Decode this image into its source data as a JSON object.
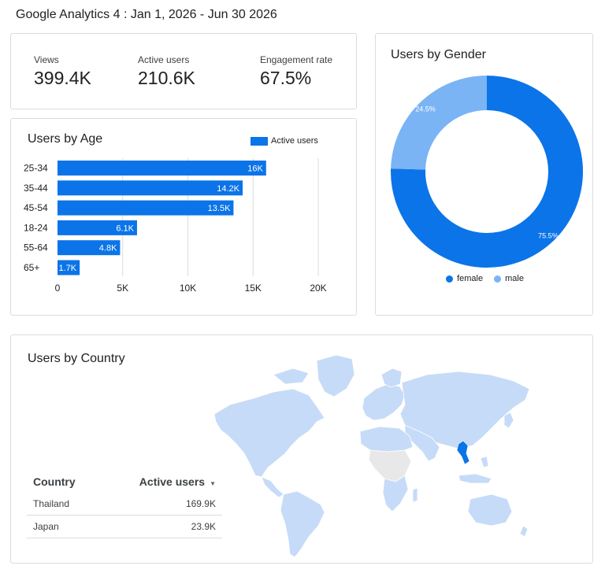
{
  "page": {
    "title": "Google Analytics 4 : Jan 1, 2026 - Jun 30 2026"
  },
  "kpis": [
    {
      "label": "Views",
      "value": "399.4K"
    },
    {
      "label": "Active users",
      "value": "210.6K"
    },
    {
      "label": "Engagement rate",
      "value": "67.5%"
    }
  ],
  "age_card": {
    "title": "Users by Age",
    "legend_label": "Active users"
  },
  "gender_card": {
    "title": "Users by Gender",
    "legend": [
      {
        "label": "female",
        "color": "#0b74e8"
      },
      {
        "label": "male",
        "color": "#7ab4f5"
      }
    ]
  },
  "country_card": {
    "title": "Users by Country",
    "table": {
      "headers": {
        "country": "Country",
        "active_users": "Active users",
        "sort_icon": "▼"
      },
      "rows": [
        {
          "country": "Thailand",
          "active_users": "169.9K"
        },
        {
          "country": "Japan",
          "active_users": "23.9K"
        }
      ]
    },
    "map_colors": {
      "land": "#c6dbf7",
      "highlight": "#0b74e8",
      "nodata": "#e8e8e8",
      "border": "#ffffff"
    }
  },
  "chart_data": [
    {
      "type": "bar",
      "orientation": "horizontal",
      "title": "Users by Age",
      "categories": [
        "25-34",
        "35-44",
        "45-54",
        "18-24",
        "55-64",
        "65+"
      ],
      "series": [
        {
          "name": "Active users",
          "values": [
            16000,
            14200,
            13500,
            6100,
            4800,
            1700
          ],
          "labels": [
            "16K",
            "14.2K",
            "13.5K",
            "6.1K",
            "4.8K",
            "1.7K"
          ]
        }
      ],
      "xlim": [
        0,
        20000
      ],
      "ticks": [
        0,
        5000,
        10000,
        15000,
        20000
      ],
      "tick_labels": [
        "0",
        "5K",
        "10K",
        "15K",
        "20K"
      ],
      "grid": true,
      "legend": "top-right",
      "color": "#0b74e8"
    },
    {
      "type": "pie",
      "title": "Users by Gender",
      "donut": true,
      "slices": [
        {
          "name": "female",
          "value": 75.5,
          "label": "75.5%",
          "color": "#0b74e8"
        },
        {
          "name": "male",
          "value": 24.5,
          "label": "24.5%",
          "color": "#7ab4f5"
        }
      ],
      "legend": "bottom"
    }
  ]
}
